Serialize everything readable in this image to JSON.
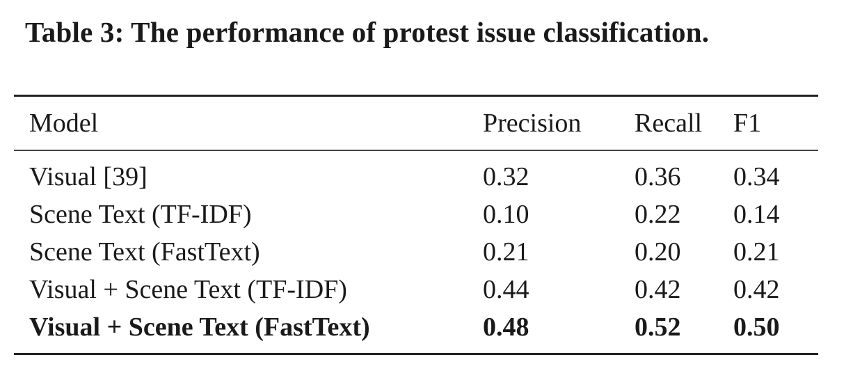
{
  "caption": "Table 3: The performance of protest issue classification.",
  "table": {
    "headers": [
      "Model",
      "Precision",
      "Recall",
      "F1"
    ],
    "rows": [
      {
        "model": "Visual [39]",
        "precision": "0.32",
        "recall": "0.36",
        "f1": "0.34"
      },
      {
        "model": "Scene Text (TF-IDF)",
        "precision": "0.10",
        "recall": "0.22",
        "f1": "0.14"
      },
      {
        "model": "Scene Text (FastText)",
        "precision": "0.21",
        "recall": "0.20",
        "f1": "0.21"
      },
      {
        "model": "Visual + Scene Text (TF-IDF)",
        "precision": "0.44",
        "recall": "0.42",
        "f1": "0.42"
      },
      {
        "model": "Visual + Scene Text (FastText)",
        "precision": "0.48",
        "recall": "0.52",
        "f1": "0.50"
      }
    ]
  }
}
